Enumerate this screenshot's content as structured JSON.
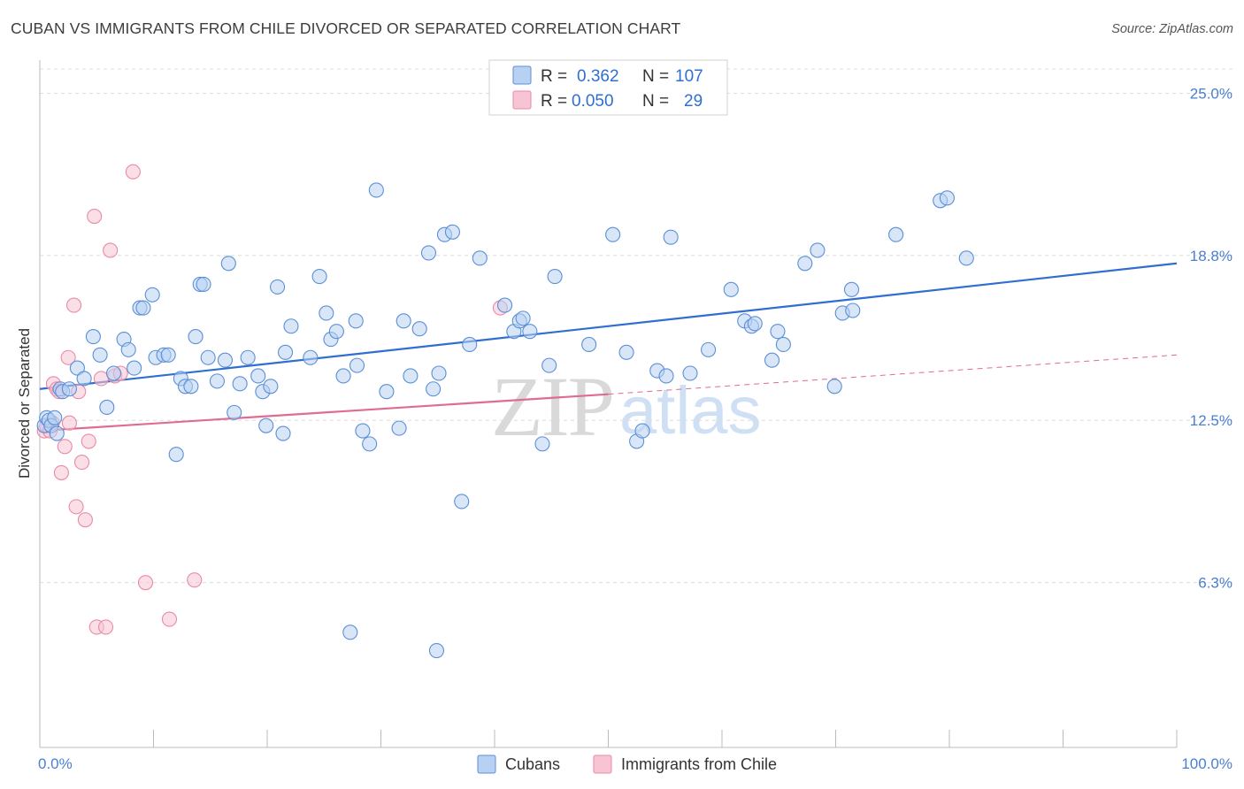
{
  "header": {
    "title": "CUBAN VS IMMIGRANTS FROM CHILE DIVORCED OR SEPARATED CORRELATION CHART",
    "source": "Source: ZipAtlas.com"
  },
  "watermark": {
    "zip": "ZIP",
    "atlas": "atlas"
  },
  "colors": {
    "blue": "#5b8fd6",
    "blue_fill": "#b8d1f3",
    "blue_line": "#2f6fd0",
    "pink": "#e88aa8",
    "pink_fill": "#f7c4d4",
    "pink_line": "#e06b93",
    "tick_text": "#4a7fd4",
    "grid": "#d8d8d8"
  },
  "stats_legend": {
    "rows": [
      {
        "r_label": "R =",
        "r_value": "0.362",
        "n_label": "N =",
        "n_value": "107"
      },
      {
        "r_label": "R =",
        "r_value": "0.050",
        "n_label": "N =",
        "n_value": "29"
      }
    ]
  },
  "chart_data": {
    "type": "scatter",
    "title": "CUBAN VS IMMIGRANTS FROM CHILE DIVORCED OR SEPARATED CORRELATION CHART",
    "xlabel": "",
    "ylabel": "Divorced or Separated",
    "xlim": [
      0,
      100
    ],
    "ylim": [
      0,
      26.2
    ],
    "x_tick_labels": [
      "0.0%",
      "100.0%"
    ],
    "y_ticks": [
      6.3,
      12.5,
      18.8,
      25.0
    ],
    "y_tick_labels": [
      "6.3%",
      "12.5%",
      "18.8%",
      "25.0%"
    ],
    "grid": "horizontal-dashed",
    "legend_position": "bottom",
    "series": [
      {
        "name": "Cubans",
        "color": "#5b8fd6",
        "trend": {
          "x": [
            0,
            100
          ],
          "y": [
            13.7,
            18.5
          ]
        },
        "points": [
          [
            0.4,
            12.3
          ],
          [
            0.6,
            12.6
          ],
          [
            0.8,
            12.5
          ],
          [
            1.0,
            12.3
          ],
          [
            1.3,
            12.6
          ],
          [
            1.5,
            12.0
          ],
          [
            1.8,
            13.7
          ],
          [
            2.0,
            13.6
          ],
          [
            2.6,
            13.7
          ],
          [
            3.3,
            14.5
          ],
          [
            3.9,
            14.1
          ],
          [
            4.7,
            15.7
          ],
          [
            5.3,
            15.0
          ],
          [
            5.9,
            13.0
          ],
          [
            6.5,
            14.3
          ],
          [
            7.4,
            15.6
          ],
          [
            7.8,
            15.2
          ],
          [
            8.3,
            14.5
          ],
          [
            8.8,
            16.8
          ],
          [
            9.1,
            16.8
          ],
          [
            9.9,
            17.3
          ],
          [
            10.2,
            14.9
          ],
          [
            10.9,
            15.0
          ],
          [
            11.3,
            15.0
          ],
          [
            12.0,
            11.2
          ],
          [
            12.4,
            14.1
          ],
          [
            12.8,
            13.8
          ],
          [
            13.3,
            13.8
          ],
          [
            13.7,
            15.7
          ],
          [
            14.1,
            17.7
          ],
          [
            14.4,
            17.7
          ],
          [
            14.8,
            14.9
          ],
          [
            15.6,
            14.0
          ],
          [
            16.3,
            14.8
          ],
          [
            16.6,
            18.5
          ],
          [
            17.1,
            12.8
          ],
          [
            17.6,
            13.9
          ],
          [
            18.3,
            14.9
          ],
          [
            19.2,
            14.2
          ],
          [
            19.6,
            13.6
          ],
          [
            19.9,
            12.3
          ],
          [
            20.3,
            13.8
          ],
          [
            20.9,
            17.6
          ],
          [
            21.4,
            12.0
          ],
          [
            21.6,
            15.1
          ],
          [
            22.1,
            16.1
          ],
          [
            23.8,
            14.9
          ],
          [
            24.6,
            18.0
          ],
          [
            25.2,
            16.6
          ],
          [
            25.6,
            15.6
          ],
          [
            26.1,
            15.9
          ],
          [
            26.7,
            14.2
          ],
          [
            27.3,
            4.4
          ],
          [
            27.8,
            16.3
          ],
          [
            27.9,
            14.6
          ],
          [
            28.4,
            12.1
          ],
          [
            29.0,
            11.6
          ],
          [
            29.6,
            21.3
          ],
          [
            30.5,
            13.6
          ],
          [
            31.6,
            12.2
          ],
          [
            32.0,
            16.3
          ],
          [
            32.6,
            14.2
          ],
          [
            33.4,
            16.0
          ],
          [
            34.2,
            18.9
          ],
          [
            34.6,
            13.7
          ],
          [
            35.1,
            14.3
          ],
          [
            35.6,
            19.6
          ],
          [
            36.3,
            19.7
          ],
          [
            37.1,
            9.4
          ],
          [
            37.8,
            15.4
          ],
          [
            38.7,
            18.7
          ],
          [
            40.9,
            16.9
          ],
          [
            41.7,
            15.9
          ],
          [
            42.2,
            16.3
          ],
          [
            42.5,
            16.4
          ],
          [
            43.1,
            15.9
          ],
          [
            44.2,
            11.6
          ],
          [
            44.8,
            14.6
          ],
          [
            45.3,
            18.0
          ],
          [
            48.3,
            15.4
          ],
          [
            50.4,
            19.6
          ],
          [
            51.6,
            15.1
          ],
          [
            52.5,
            11.7
          ],
          [
            53.0,
            12.1
          ],
          [
            54.3,
            14.4
          ],
          [
            55.1,
            14.2
          ],
          [
            55.5,
            19.5
          ],
          [
            57.2,
            14.3
          ],
          [
            58.8,
            15.2
          ],
          [
            60.8,
            17.5
          ],
          [
            62.0,
            16.3
          ],
          [
            62.6,
            16.1
          ],
          [
            62.9,
            16.2
          ],
          [
            64.4,
            14.8
          ],
          [
            64.9,
            15.9
          ],
          [
            65.4,
            15.4
          ],
          [
            67.3,
            18.5
          ],
          [
            68.4,
            19.0
          ],
          [
            69.9,
            13.8
          ],
          [
            70.6,
            16.6
          ],
          [
            71.4,
            17.5
          ],
          [
            71.5,
            16.7
          ],
          [
            75.3,
            19.6
          ],
          [
            79.2,
            20.9
          ],
          [
            79.8,
            21.0
          ],
          [
            81.5,
            18.7
          ],
          [
            34.9,
            3.7
          ]
        ]
      },
      {
        "name": "Immigrants from Chile",
        "color": "#e88aa8",
        "trend": {
          "x": [
            0,
            50
          ],
          "y": [
            12.1,
            13.5
          ]
        },
        "trend_extension": {
          "x": [
            50,
            100
          ],
          "y": [
            13.5,
            15.0
          ]
        },
        "points": [
          [
            0.4,
            12.1
          ],
          [
            0.6,
            12.3
          ],
          [
            0.9,
            12.1
          ],
          [
            1.1,
            12.4
          ],
          [
            1.2,
            13.9
          ],
          [
            1.5,
            13.7
          ],
          [
            1.7,
            13.6
          ],
          [
            1.9,
            10.5
          ],
          [
            2.2,
            11.5
          ],
          [
            2.5,
            14.9
          ],
          [
            2.6,
            12.4
          ],
          [
            3.0,
            16.9
          ],
          [
            3.2,
            9.2
          ],
          [
            3.4,
            13.6
          ],
          [
            3.7,
            10.9
          ],
          [
            4.0,
            8.7
          ],
          [
            4.3,
            11.7
          ],
          [
            4.8,
            20.3
          ],
          [
            5.0,
            4.6
          ],
          [
            5.4,
            14.1
          ],
          [
            5.8,
            4.6
          ],
          [
            6.2,
            19.0
          ],
          [
            6.6,
            14.2
          ],
          [
            7.1,
            14.3
          ],
          [
            8.2,
            22.0
          ],
          [
            9.3,
            6.3
          ],
          [
            11.4,
            4.9
          ],
          [
            13.6,
            6.4
          ],
          [
            40.5,
            16.8
          ]
        ]
      }
    ]
  },
  "bottom_legend": {
    "items": [
      {
        "label": "Cubans"
      },
      {
        "label": "Immigrants from Chile"
      }
    ]
  }
}
